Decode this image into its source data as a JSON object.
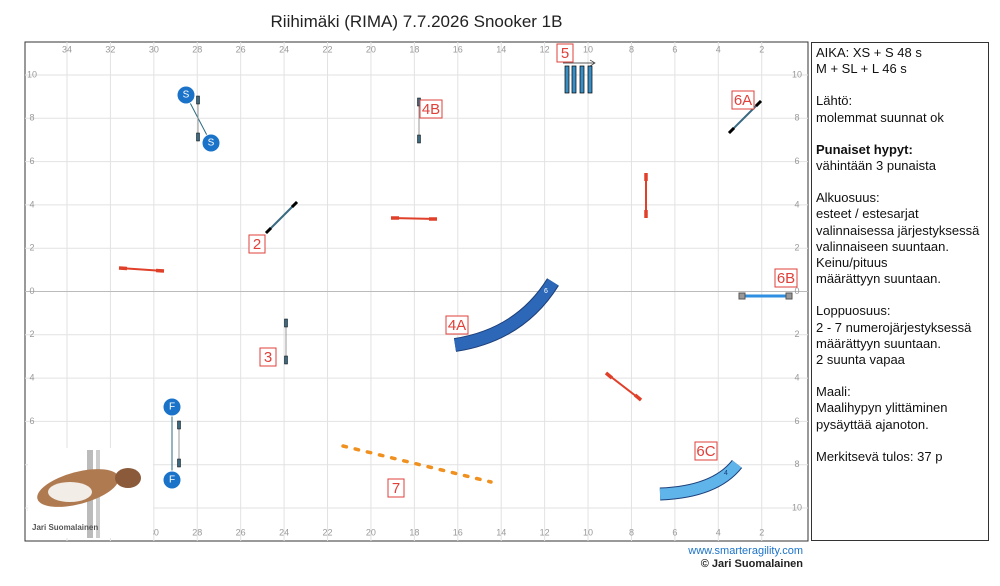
{
  "title": "Riihimäki (RIMA) 7.7.2026 Snooker 1B",
  "map": {
    "x_labels": [
      34,
      32,
      30,
      28,
      26,
      24,
      22,
      20,
      18,
      16,
      14,
      12,
      10,
      8,
      6,
      4,
      2
    ],
    "y_labels": [
      10,
      8,
      6,
      4,
      2,
      0,
      2,
      4,
      6,
      8,
      10
    ],
    "start_labels": [
      "S",
      "S"
    ],
    "finish_labels": [
      "F",
      "F"
    ],
    "obstacle_labels": [
      "2",
      "3",
      "4A",
      "4B",
      "5",
      "6A",
      "6B",
      "6C",
      "7"
    ],
    "tunnel_marks": [
      "6",
      "4"
    ],
    "photo_credit": "Jari Suomalainen"
  },
  "sidebar": {
    "lines": [
      "AIKA: XS + S 48 s",
      "M + SL + L 46 s",
      "Lähtö:",
      "molemmat suunnat ok",
      "Punaiset hypyt:",
      "vähintään 3 punaista",
      "Alkuosuus:",
      "esteet / estesarjat",
      "valinnaisessa järjestyksessä",
      "valinnaiseen suuntaan.",
      "Keinu/pituus",
      "määrättyyn suuntaan.",
      "Loppuosuus:",
      "2 - 7 numerojärjestyksessä",
      "määrättyyn suuntaan.",
      "2 suunta vapaa",
      "Maali:",
      "Maalihypyn ylittäminen",
      "pysäyttää ajanoton.",
      "Merkitsevä tulos: 37 p"
    ]
  },
  "footer": {
    "url": "www.smarteragility.com",
    "copyright": "© Jari Suomalainen"
  }
}
